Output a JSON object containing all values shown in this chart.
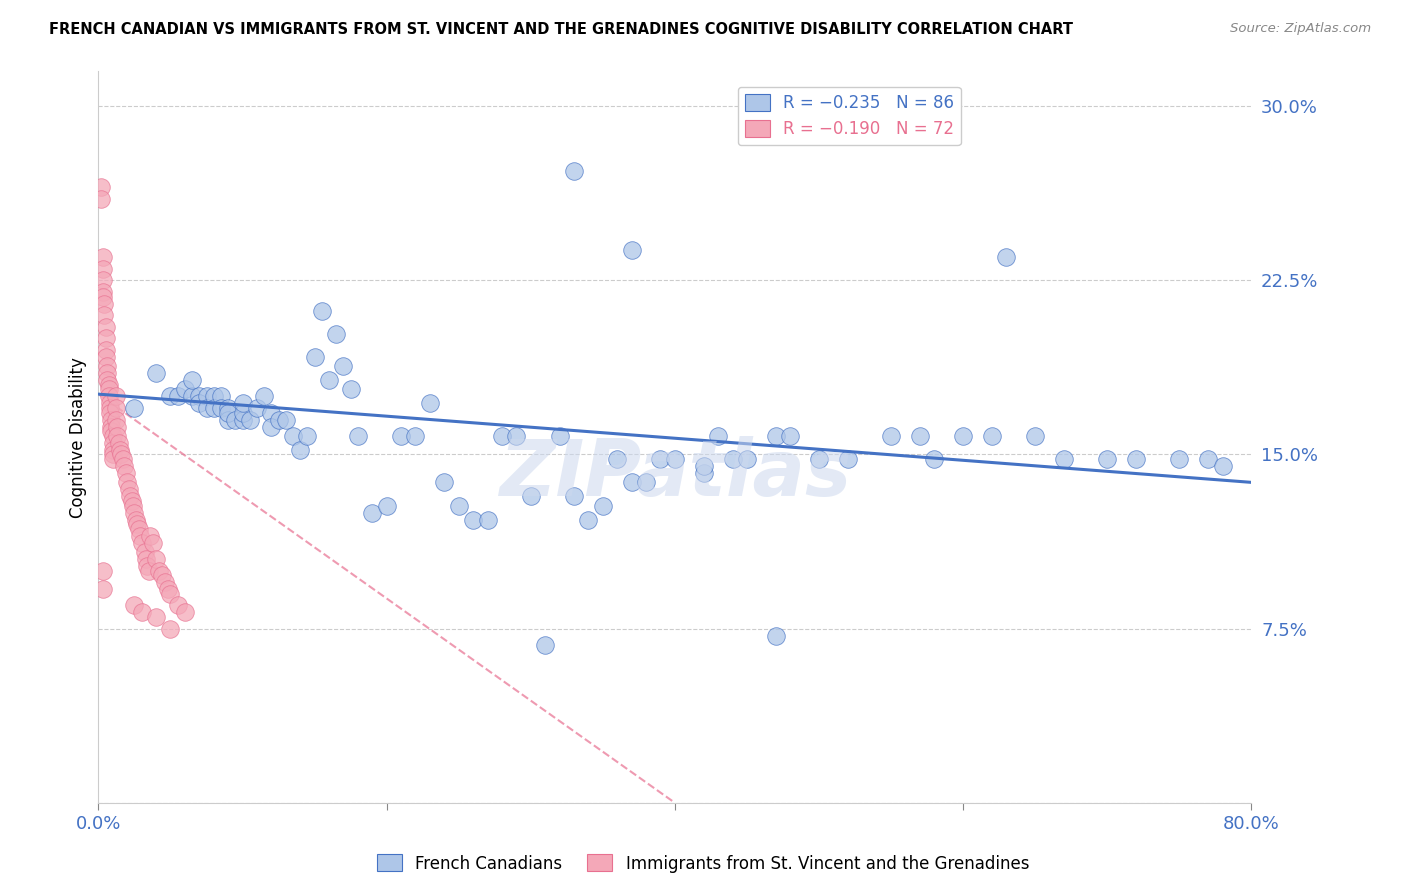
{
  "title": "FRENCH CANADIAN VS IMMIGRANTS FROM ST. VINCENT AND THE GRENADINES COGNITIVE DISABILITY CORRELATION CHART",
  "source": "Source: ZipAtlas.com",
  "ylabel": "Cognitive Disability",
  "yticks": [
    0.0,
    0.075,
    0.15,
    0.225,
    0.3
  ],
  "ytick_labels": [
    "",
    "7.5%",
    "15.0%",
    "22.5%",
    "30.0%"
  ],
  "xlim": [
    0.0,
    0.8
  ],
  "ylim": [
    0.0,
    0.315
  ],
  "blue_scatter_x": [
    0.025,
    0.04,
    0.05,
    0.055,
    0.06,
    0.065,
    0.065,
    0.07,
    0.07,
    0.075,
    0.075,
    0.08,
    0.08,
    0.085,
    0.085,
    0.09,
    0.09,
    0.09,
    0.095,
    0.1,
    0.1,
    0.1,
    0.105,
    0.11,
    0.115,
    0.12,
    0.12,
    0.125,
    0.13,
    0.135,
    0.14,
    0.145,
    0.15,
    0.155,
    0.16,
    0.165,
    0.17,
    0.175,
    0.18,
    0.19,
    0.2,
    0.21,
    0.22,
    0.23,
    0.24,
    0.25,
    0.26,
    0.27,
    0.28,
    0.29,
    0.3,
    0.31,
    0.32,
    0.33,
    0.34,
    0.35,
    0.36,
    0.37,
    0.38,
    0.39,
    0.4,
    0.42,
    0.43,
    0.44,
    0.45,
    0.47,
    0.48,
    0.5,
    0.52,
    0.55,
    0.57,
    0.58,
    0.6,
    0.62,
    0.63,
    0.65,
    0.67,
    0.7,
    0.72,
    0.75,
    0.77,
    0.78,
    0.33,
    0.37,
    0.42,
    0.47
  ],
  "blue_scatter_y": [
    0.17,
    0.185,
    0.175,
    0.175,
    0.178,
    0.175,
    0.182,
    0.175,
    0.172,
    0.175,
    0.17,
    0.175,
    0.17,
    0.175,
    0.17,
    0.17,
    0.165,
    0.168,
    0.165,
    0.165,
    0.168,
    0.172,
    0.165,
    0.17,
    0.175,
    0.168,
    0.162,
    0.165,
    0.165,
    0.158,
    0.152,
    0.158,
    0.192,
    0.212,
    0.182,
    0.202,
    0.188,
    0.178,
    0.158,
    0.125,
    0.128,
    0.158,
    0.158,
    0.172,
    0.138,
    0.128,
    0.122,
    0.122,
    0.158,
    0.158,
    0.132,
    0.068,
    0.158,
    0.132,
    0.122,
    0.128,
    0.148,
    0.138,
    0.138,
    0.148,
    0.148,
    0.142,
    0.158,
    0.148,
    0.148,
    0.158,
    0.158,
    0.148,
    0.148,
    0.158,
    0.158,
    0.148,
    0.158,
    0.158,
    0.235,
    0.158,
    0.148,
    0.148,
    0.148,
    0.148,
    0.148,
    0.145,
    0.272,
    0.238,
    0.145,
    0.072
  ],
  "pink_scatter_x": [
    0.002,
    0.002,
    0.003,
    0.003,
    0.003,
    0.003,
    0.003,
    0.004,
    0.004,
    0.005,
    0.005,
    0.005,
    0.005,
    0.006,
    0.006,
    0.006,
    0.007,
    0.007,
    0.007,
    0.008,
    0.008,
    0.008,
    0.009,
    0.009,
    0.009,
    0.01,
    0.01,
    0.01,
    0.01,
    0.01,
    0.012,
    0.012,
    0.012,
    0.013,
    0.013,
    0.014,
    0.015,
    0.016,
    0.017,
    0.018,
    0.019,
    0.02,
    0.021,
    0.022,
    0.023,
    0.024,
    0.025,
    0.026,
    0.027,
    0.028,
    0.029,
    0.03,
    0.032,
    0.033,
    0.034,
    0.035,
    0.036,
    0.038,
    0.04,
    0.042,
    0.044,
    0.046,
    0.048,
    0.05,
    0.055,
    0.06,
    0.025,
    0.03,
    0.04,
    0.05,
    0.003,
    0.003
  ],
  "pink_scatter_y": [
    0.265,
    0.26,
    0.235,
    0.23,
    0.225,
    0.22,
    0.218,
    0.215,
    0.21,
    0.205,
    0.2,
    0.195,
    0.192,
    0.188,
    0.185,
    0.182,
    0.18,
    0.178,
    0.175,
    0.172,
    0.17,
    0.168,
    0.165,
    0.162,
    0.16,
    0.158,
    0.155,
    0.152,
    0.15,
    0.148,
    0.175,
    0.17,
    0.165,
    0.162,
    0.158,
    0.155,
    0.152,
    0.15,
    0.148,
    0.145,
    0.142,
    0.138,
    0.135,
    0.132,
    0.13,
    0.128,
    0.125,
    0.122,
    0.12,
    0.118,
    0.115,
    0.112,
    0.108,
    0.105,
    0.102,
    0.1,
    0.115,
    0.112,
    0.105,
    0.1,
    0.098,
    0.095,
    0.092,
    0.09,
    0.085,
    0.082,
    0.085,
    0.082,
    0.08,
    0.075,
    0.1,
    0.092
  ],
  "blue_line_x": [
    0.0,
    0.8
  ],
  "blue_line_y": [
    0.176,
    0.138
  ],
  "pink_line_x": [
    0.0,
    0.4
  ],
  "pink_line_y": [
    0.176,
    0.0
  ],
  "blue_color": "#aec6e8",
  "blue_line_color": "#4472c4",
  "pink_color": "#f4a8b8",
  "pink_line_color": "#e87090",
  "axis_label_color": "#4472c4",
  "watermark": "ZIPatlas",
  "legend_r1": "R = −0.235",
  "legend_n1": "N = 86",
  "legend_r2": "R = −0.190",
  "legend_n2": "N = 72",
  "bottom_legend_1": "French Canadians",
  "bottom_legend_2": "Immigrants from St. Vincent and the Grenadines"
}
